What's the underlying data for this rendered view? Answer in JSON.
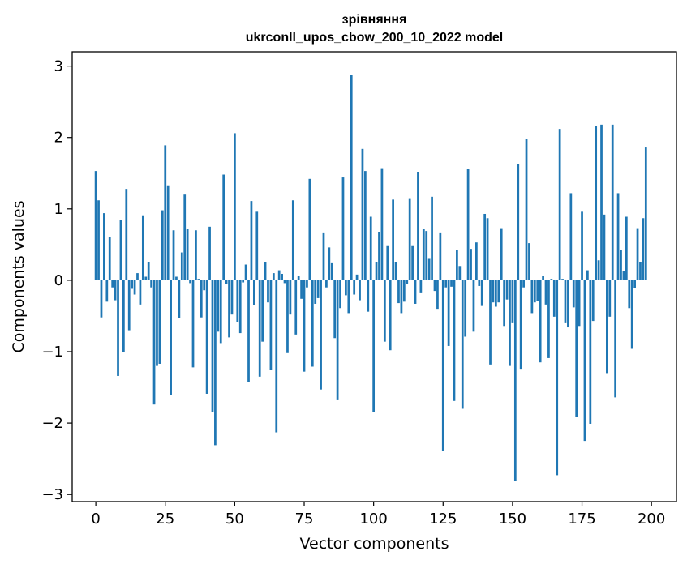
{
  "chart_data": {
    "type": "bar",
    "title_line1": "зрівняння",
    "title_line2": "ukrconll_upos_cbow_200_10_2022 model",
    "xlabel": "Vector components",
    "ylabel": "Components values",
    "xlim": [
      -8.5,
      209
    ],
    "ylim": [
      -3.1,
      3.2
    ],
    "xticks": [
      0,
      25,
      50,
      75,
      100,
      125,
      150,
      175,
      200
    ],
    "xtick_labels": [
      "0",
      "25",
      "50",
      "75",
      "100",
      "125",
      "150",
      "175",
      "200"
    ],
    "yticks": [
      -3,
      -2,
      -1,
      0,
      1,
      2,
      3
    ],
    "ytick_labels": [
      "−3",
      "−2",
      "−1",
      "0",
      "1",
      "2",
      "3"
    ],
    "bar_color": "#1f77b4",
    "values": [
      1.53,
      1.12,
      -0.52,
      0.94,
      -0.3,
      0.61,
      -0.1,
      -0.28,
      -1.34,
      0.85,
      -1.0,
      1.28,
      -0.7,
      -0.12,
      -0.2,
      0.1,
      -0.34,
      0.91,
      0.05,
      0.26,
      -0.1,
      -1.74,
      -1.2,
      -1.17,
      0.98,
      1.89,
      1.33,
      -1.61,
      0.7,
      0.05,
      -0.53,
      0.39,
      1.2,
      0.72,
      -0.04,
      -1.22,
      0.7,
      0.02,
      -0.52,
      -0.14,
      -1.59,
      0.75,
      -1.84,
      -2.31,
      -0.72,
      -0.88,
      1.48,
      -0.05,
      -0.8,
      -0.48,
      2.06,
      -0.58,
      -0.74,
      -0.03,
      0.22,
      -1.42,
      1.11,
      -0.35,
      0.96,
      -1.35,
      -0.86,
      0.26,
      -0.31,
      -1.25,
      0.1,
      -2.13,
      0.14,
      0.09,
      -0.04,
      -1.02,
      -0.48,
      1.12,
      -0.76,
      0.06,
      -0.26,
      -1.28,
      -0.1,
      1.42,
      -1.21,
      -0.33,
      -0.25,
      -1.53,
      0.67,
      -0.1,
      0.46,
      0.25,
      -0.81,
      -1.68,
      -0.39,
      1.44,
      -0.21,
      -0.46,
      2.88,
      -0.2,
      0.08,
      -0.28,
      1.84,
      1.53,
      -0.44,
      0.89,
      -1.84,
      0.26,
      0.68,
      1.57,
      -0.86,
      0.49,
      -0.98,
      1.13,
      0.26,
      -0.32,
      -0.46,
      -0.3,
      -0.05,
      1.15,
      0.49,
      -0.33,
      1.52,
      -0.17,
      0.72,
      0.69,
      0.3,
      1.17,
      -0.15,
      -0.4,
      0.67,
      -2.39,
      -0.1,
      -0.92,
      -0.09,
      -1.69,
      0.42,
      0.2,
      -1.8,
      -0.79,
      1.56,
      0.44,
      -0.72,
      0.53,
      -0.08,
      -0.36,
      0.93,
      0.87,
      -1.18,
      -0.31,
      -0.37,
      -0.31,
      0.73,
      -0.64,
      -0.27,
      -1.2,
      -0.59,
      -2.81,
      1.63,
      -1.24,
      -0.1,
      1.98,
      0.52,
      -0.46,
      -0.31,
      -0.29,
      -1.15,
      0.06,
      -0.34,
      -1.09,
      0.02,
      -0.51,
      -2.73,
      2.12,
      0.02,
      -0.59,
      -0.66,
      1.22,
      -0.38,
      -1.91,
      -0.64,
      0.96,
      -2.25,
      0.14,
      -2.01,
      -0.57,
      2.16,
      0.28,
      2.18,
      0.92,
      -1.3,
      -0.51,
      2.18,
      -1.64,
      1.22,
      0.42,
      0.13,
      0.89,
      -0.39,
      -0.96,
      -0.11,
      0.73,
      0.26,
      0.87,
      1.86
    ]
  }
}
